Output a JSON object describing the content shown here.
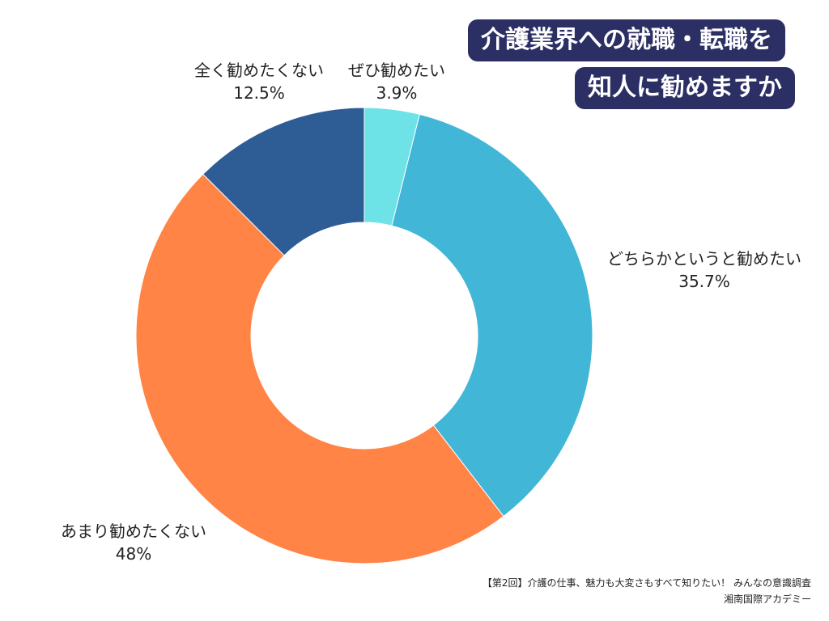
{
  "title": {
    "line1": "介護業界への就職・転職を",
    "line2": "知人に勧めますか"
  },
  "chart_data": {
    "type": "pie",
    "donut": true,
    "slices": [
      {
        "label": "ぜひ勧めたい",
        "value": 3.9,
        "value_label": "3.9%",
        "color": "#6de3e8"
      },
      {
        "label": "どちらかというと勧めたい",
        "value": 35.7,
        "value_label": "35.7%",
        "color": "#41b6d6"
      },
      {
        "label": "あまり勧めたくない",
        "value": 48,
        "value_label": "48%",
        "color": "#ff8446"
      },
      {
        "label": "全く勧めたくない",
        "value": 12.5,
        "value_label": "12.5%",
        "color": "#2e5d96"
      }
    ]
  },
  "source": {
    "line1": "【第2回】介護の仕事、魅力も大変さもすべて知りたい！ みんなの意識調査",
    "line2": "湘南国際アカデミー"
  }
}
